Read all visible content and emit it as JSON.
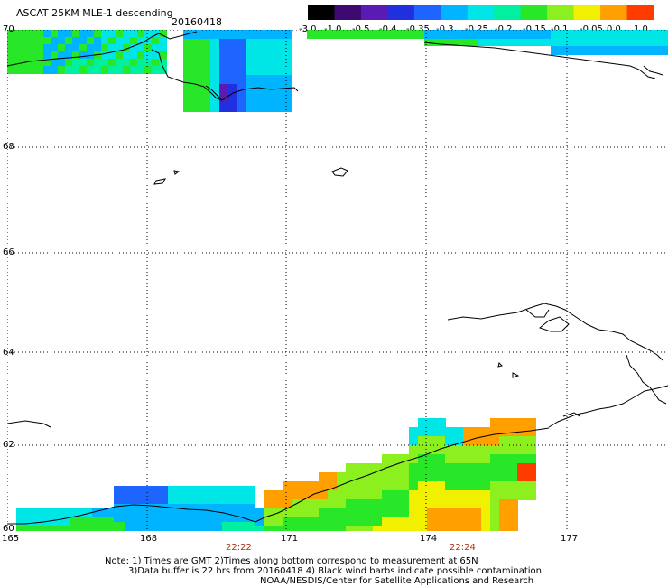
{
  "header": {
    "product": "ASCAT 25KM MLE-1 descending",
    "date": "20160418"
  },
  "colorbar": {
    "labels": [
      "-3.0",
      "-1.0",
      "-0.5",
      "-0.4",
      "-0.35",
      "-0.3",
      "-0.25",
      "-0.2",
      "-0.15",
      "-0.1",
      "-0.05",
      "0.0",
      "1.0"
    ],
    "colors": [
      "#000000",
      "#3c0a70",
      "#5a1ab4",
      "#2030e0",
      "#1e64ff",
      "#00b4ff",
      "#00e6e6",
      "#00f0a0",
      "#28e628",
      "#8cf01e",
      "#f0f000",
      "#ffa000",
      "#ff3c00"
    ]
  },
  "map": {
    "lat_labels": [
      "70",
      "68",
      "66",
      "64",
      "62",
      "60"
    ],
    "lon_labels": [
      "165",
      "168",
      "171",
      "174",
      "177"
    ],
    "time_labels": [
      "22:22",
      "22:24"
    ],
    "colors": {
      "grid": "#000000",
      "coast": "#000000",
      "time_text": "#b03010"
    }
  },
  "notes": {
    "line1": "Note: 1) Times are GMT 2)Times along bottom correspond to measurement at 65N",
    "line2": "3)Data buffer is 22 hrs from 20160418 4) Black wind barbs indicate possible contamination",
    "line3": "NOAA/NESDIS/Center for Satellite Applications and Research"
  }
}
